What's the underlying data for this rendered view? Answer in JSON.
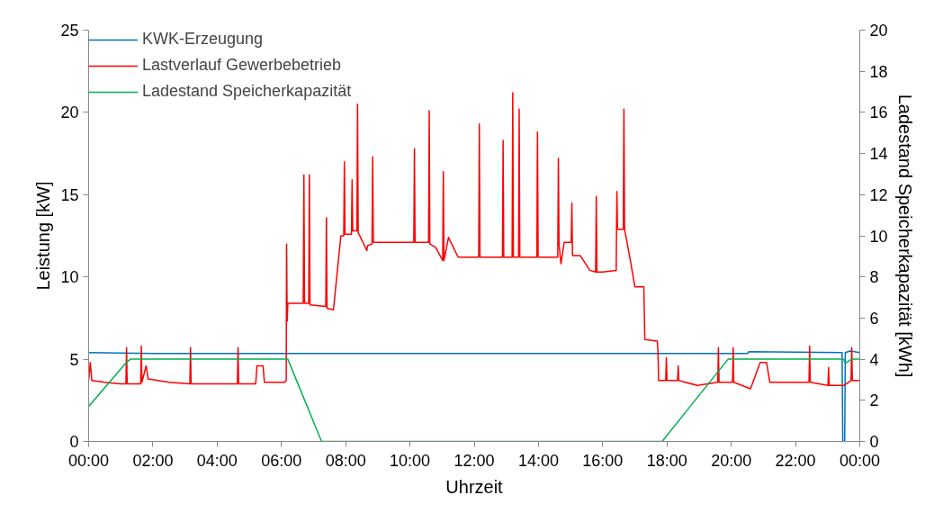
{
  "chart_data": {
    "type": "line",
    "xlabel": "Uhrzeit",
    "ylabel": "Leistung [kW]",
    "y2label": "Ladestand Speicherkapazität [kWh]",
    "xlim": [
      0,
      24
    ],
    "xticks": [
      {
        "value": 0,
        "label": "00:00"
      },
      {
        "value": 2,
        "label": "02:00"
      },
      {
        "value": 4,
        "label": "04:00"
      },
      {
        "value": 6,
        "label": "06:00"
      },
      {
        "value": 8,
        "label": "08:00"
      },
      {
        "value": 10,
        "label": "10:00"
      },
      {
        "value": 12,
        "label": "12:00"
      },
      {
        "value": 14,
        "label": "14:00"
      },
      {
        "value": 16,
        "label": "16:00"
      },
      {
        "value": 18,
        "label": "18:00"
      },
      {
        "value": 20,
        "label": "20:00"
      },
      {
        "value": 22,
        "label": "22:00"
      },
      {
        "value": 24,
        "label": "00:00"
      }
    ],
    "ylim": [
      0,
      25
    ],
    "yticks": [
      0,
      5,
      10,
      15,
      20,
      25
    ],
    "y2lim": [
      0,
      20
    ],
    "y2ticks": [
      0,
      2,
      4,
      6,
      8,
      10,
      12,
      14,
      16,
      18,
      20
    ],
    "grid": false,
    "legend": "top left",
    "marker": "none",
    "line_style": "solid",
    "series": [
      {
        "name": "KWK-Erzeugung",
        "color": "#0070c0",
        "x": [
          0,
          2,
          4,
          6,
          8,
          10,
          12,
          14,
          16,
          18,
          20,
          20.5,
          20.55,
          23.45,
          23.47,
          23.53,
          23.55,
          23.7,
          24
        ],
        "values": [
          5.4,
          5.35,
          5.35,
          5.35,
          5.35,
          5.35,
          5.35,
          5.35,
          5.35,
          5.35,
          5.35,
          5.35,
          5.45,
          5.4,
          0,
          0,
          5.4,
          5.5,
          5.4
        ]
      },
      {
        "name": "Lastverlauf Gewerbebetrieb",
        "color": "#ff0000",
        "x": [
          0,
          0.05,
          0.1,
          0.5,
          1.0,
          1.16,
          1.18,
          1.2,
          1.62,
          1.64,
          1.66,
          1.79,
          1.85,
          2.5,
          3.15,
          3.17,
          3.19,
          4.0,
          4.63,
          4.65,
          4.67,
          5.2,
          5.24,
          5.43,
          5.47,
          6.1,
          6.15,
          6.16,
          6.18,
          6.2,
          6.3,
          6.68,
          6.7,
          6.72,
          6.85,
          6.87,
          6.89,
          7.38,
          7.4,
          7.42,
          7.62,
          7.85,
          7.94,
          7.96,
          7.98,
          8.18,
          8.2,
          8.22,
          8.35,
          8.37,
          8.39,
          8.66,
          8.68,
          8.82,
          8.84,
          8.86,
          9.5,
          10.12,
          10.14,
          10.16,
          10.58,
          10.6,
          10.62,
          10.8,
          11.02,
          11.04,
          11.06,
          11.2,
          11.5,
          12.14,
          12.16,
          12.18,
          12.88,
          12.9,
          12.92,
          13.18,
          13.2,
          13.22,
          13.38,
          13.4,
          13.42,
          13.95,
          13.97,
          13.99,
          14.3,
          14.6,
          14.62,
          14.64,
          14.7,
          14.8,
          15.02,
          15.04,
          15.06,
          15.3,
          15.6,
          15.78,
          15.8,
          15.82,
          16.0,
          16.42,
          16.44,
          16.46,
          16.64,
          16.66,
          16.68,
          16.86,
          17.0,
          17.28,
          17.31,
          17.7,
          17.72,
          17.74,
          17.96,
          17.98,
          18.0,
          18.33,
          18.35,
          18.37,
          18.95,
          19.58,
          19.6,
          19.62,
          20.04,
          20.06,
          20.08,
          20.6,
          20.9,
          21.1,
          21.2,
          22.0,
          22.42,
          22.44,
          22.46,
          23.01,
          23.03,
          23.05,
          23.5,
          23.73,
          23.75,
          23.77,
          24
        ],
        "values": [
          3.7,
          4.8,
          3.7,
          3.6,
          3.5,
          3.5,
          5.7,
          3.5,
          3.5,
          5.8,
          3.6,
          4.6,
          3.8,
          3.6,
          3.5,
          5.7,
          3.5,
          3.5,
          3.5,
          5.7,
          3.5,
          3.5,
          4.6,
          4.6,
          3.6,
          3.6,
          3.7,
          12.0,
          7.3,
          8.4,
          8.4,
          8.4,
          16.2,
          8.4,
          8.4,
          16.2,
          8.3,
          8.2,
          13.6,
          8.1,
          8.0,
          12.5,
          12.5,
          17.0,
          12.6,
          12.6,
          15.9,
          12.8,
          12.8,
          20.5,
          12.7,
          11.6,
          11.9,
          12.0,
          17.3,
          12.1,
          12.1,
          12.1,
          17.8,
          12.1,
          12.1,
          20.1,
          12.0,
          11.8,
          11.0,
          16.4,
          11.0,
          12.4,
          11.2,
          11.2,
          19.3,
          11.2,
          11.2,
          18.3,
          11.2,
          11.2,
          21.2,
          11.2,
          11.2,
          20.2,
          11.2,
          11.2,
          18.8,
          11.2,
          11.2,
          11.2,
          17.2,
          12.0,
          10.8,
          12.1,
          12.1,
          14.5,
          11.3,
          11.3,
          10.4,
          10.3,
          14.9,
          10.3,
          10.3,
          10.4,
          15.2,
          12.9,
          12.9,
          20.2,
          12.9,
          11.0,
          9.4,
          9.4,
          6.2,
          6.1,
          5.4,
          3.7,
          3.7,
          5.1,
          3.7,
          3.7,
          4.6,
          3.7,
          3.4,
          3.6,
          5.7,
          3.6,
          3.6,
          5.7,
          3.6,
          3.2,
          4.8,
          4.8,
          3.6,
          3.6,
          3.6,
          5.8,
          3.6,
          3.4,
          4.5,
          3.4,
          3.4,
          3.7,
          5.7,
          3.7,
          3.7
        ]
      },
      {
        "name": "Ladestand Speicherkapazität",
        "color": "#00b050",
        "axis": "y2",
        "x": [
          0,
          1.15,
          1.3,
          6.2,
          7.25,
          17.85,
          19.9,
          23.5,
          23.55,
          23.75,
          24
        ],
        "values": [
          1.7,
          3.8,
          4.0,
          4.0,
          0,
          0,
          4.0,
          4.0,
          3.8,
          4.0,
          4.0
        ]
      }
    ]
  }
}
